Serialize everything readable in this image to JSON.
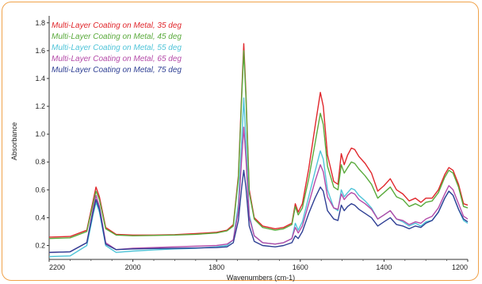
{
  "chart_data": {
    "type": "line",
    "xlabel": "Wavenumbers (cm-1)",
    "ylabel": "Absorbance",
    "xlim": [
      2200,
      1200
    ],
    "ylim": [
      0.1,
      1.85
    ],
    "x_reversed": true,
    "xticks": [
      2200,
      2000,
      1800,
      1600,
      1400,
      1200
    ],
    "yticks": [
      0.2,
      0.4,
      0.6,
      0.8,
      1.0,
      1.2,
      1.4,
      1.6,
      1.8
    ],
    "ytick_labels": [
      "0.2",
      "0.4",
      "0.6",
      "0.8",
      "1.0",
      "1.2",
      "1.4",
      "1.6",
      "1.8"
    ],
    "legend_position": "top-left",
    "series": [
      {
        "name": "Multi-Layer Coating on Metal, 35 deg",
        "color": "#e0262b",
        "points": [
          [
            2200,
            0.26
          ],
          [
            2150,
            0.265
          ],
          [
            2110,
            0.31
          ],
          [
            2095,
            0.52
          ],
          [
            2088,
            0.62
          ],
          [
            2080,
            0.55
          ],
          [
            2065,
            0.33
          ],
          [
            2040,
            0.28
          ],
          [
            2000,
            0.275
          ],
          [
            1950,
            0.275
          ],
          [
            1900,
            0.278
          ],
          [
            1850,
            0.285
          ],
          [
            1800,
            0.295
          ],
          [
            1775,
            0.31
          ],
          [
            1760,
            0.35
          ],
          [
            1748,
            0.7
          ],
          [
            1740,
            1.3
          ],
          [
            1735,
            1.65
          ],
          [
            1730,
            1.3
          ],
          [
            1722,
            0.6
          ],
          [
            1710,
            0.4
          ],
          [
            1690,
            0.34
          ],
          [
            1660,
            0.32
          ],
          [
            1640,
            0.33
          ],
          [
            1620,
            0.36
          ],
          [
            1612,
            0.5
          ],
          [
            1605,
            0.44
          ],
          [
            1595,
            0.5
          ],
          [
            1580,
            0.75
          ],
          [
            1565,
            1.05
          ],
          [
            1552,
            1.3
          ],
          [
            1545,
            1.2
          ],
          [
            1535,
            0.85
          ],
          [
            1520,
            0.66
          ],
          [
            1510,
            0.64
          ],
          [
            1502,
            0.86
          ],
          [
            1495,
            0.78
          ],
          [
            1487,
            0.85
          ],
          [
            1478,
            0.9
          ],
          [
            1470,
            0.89
          ],
          [
            1460,
            0.84
          ],
          [
            1445,
            0.79
          ],
          [
            1430,
            0.72
          ],
          [
            1415,
            0.59
          ],
          [
            1400,
            0.63
          ],
          [
            1385,
            0.68
          ],
          [
            1370,
            0.6
          ],
          [
            1355,
            0.57
          ],
          [
            1340,
            0.52
          ],
          [
            1325,
            0.54
          ],
          [
            1312,
            0.51
          ],
          [
            1300,
            0.54
          ],
          [
            1285,
            0.54
          ],
          [
            1270,
            0.6
          ],
          [
            1255,
            0.71
          ],
          [
            1245,
            0.76
          ],
          [
            1235,
            0.74
          ],
          [
            1222,
            0.64
          ],
          [
            1210,
            0.5
          ],
          [
            1200,
            0.49
          ]
        ]
      },
      {
        "name": "Multi-Layer Coating on Metal, 45 deg",
        "color": "#5aaa3c",
        "points": [
          [
            2200,
            0.25
          ],
          [
            2150,
            0.255
          ],
          [
            2110,
            0.3
          ],
          [
            2095,
            0.5
          ],
          [
            2088,
            0.59
          ],
          [
            2080,
            0.53
          ],
          [
            2065,
            0.32
          ],
          [
            2040,
            0.275
          ],
          [
            2000,
            0.27
          ],
          [
            1950,
            0.272
          ],
          [
            1900,
            0.275
          ],
          [
            1850,
            0.28
          ],
          [
            1800,
            0.29
          ],
          [
            1775,
            0.305
          ],
          [
            1760,
            0.34
          ],
          [
            1748,
            0.68
          ],
          [
            1740,
            1.27
          ],
          [
            1735,
            1.6
          ],
          [
            1730,
            1.27
          ],
          [
            1722,
            0.58
          ],
          [
            1710,
            0.39
          ],
          [
            1690,
            0.33
          ],
          [
            1660,
            0.31
          ],
          [
            1640,
            0.32
          ],
          [
            1620,
            0.35
          ],
          [
            1612,
            0.48
          ],
          [
            1605,
            0.42
          ],
          [
            1595,
            0.47
          ],
          [
            1580,
            0.68
          ],
          [
            1565,
            0.93
          ],
          [
            1552,
            1.15
          ],
          [
            1545,
            1.07
          ],
          [
            1535,
            0.77
          ],
          [
            1520,
            0.62
          ],
          [
            1510,
            0.6
          ],
          [
            1502,
            0.78
          ],
          [
            1495,
            0.72
          ],
          [
            1487,
            0.76
          ],
          [
            1478,
            0.8
          ],
          [
            1470,
            0.79
          ],
          [
            1460,
            0.75
          ],
          [
            1445,
            0.7
          ],
          [
            1430,
            0.64
          ],
          [
            1415,
            0.54
          ],
          [
            1400,
            0.58
          ],
          [
            1385,
            0.62
          ],
          [
            1370,
            0.55
          ],
          [
            1355,
            0.53
          ],
          [
            1340,
            0.48
          ],
          [
            1325,
            0.5
          ],
          [
            1312,
            0.48
          ],
          [
            1300,
            0.51
          ],
          [
            1285,
            0.52
          ],
          [
            1270,
            0.58
          ],
          [
            1255,
            0.69
          ],
          [
            1245,
            0.74
          ],
          [
            1235,
            0.72
          ],
          [
            1222,
            0.62
          ],
          [
            1210,
            0.48
          ],
          [
            1200,
            0.47
          ]
        ]
      },
      {
        "name": "Multi-Layer Coating on Metal, 55 deg",
        "color": "#50c4d8",
        "points": [
          [
            2200,
            0.12
          ],
          [
            2150,
            0.125
          ],
          [
            2110,
            0.2
          ],
          [
            2095,
            0.42
          ],
          [
            2088,
            0.51
          ],
          [
            2080,
            0.44
          ],
          [
            2065,
            0.2
          ],
          [
            2040,
            0.15
          ],
          [
            2000,
            0.16
          ],
          [
            1950,
            0.168
          ],
          [
            1900,
            0.175
          ],
          [
            1850,
            0.18
          ],
          [
            1800,
            0.19
          ],
          [
            1775,
            0.2
          ],
          [
            1760,
            0.24
          ],
          [
            1748,
            0.5
          ],
          [
            1740,
            0.95
          ],
          [
            1735,
            1.26
          ],
          [
            1730,
            0.95
          ],
          [
            1722,
            0.42
          ],
          [
            1710,
            0.27
          ],
          [
            1690,
            0.22
          ],
          [
            1660,
            0.21
          ],
          [
            1640,
            0.22
          ],
          [
            1620,
            0.25
          ],
          [
            1612,
            0.36
          ],
          [
            1605,
            0.31
          ],
          [
            1595,
            0.37
          ],
          [
            1580,
            0.55
          ],
          [
            1565,
            0.73
          ],
          [
            1552,
            0.88
          ],
          [
            1545,
            0.82
          ],
          [
            1535,
            0.6
          ],
          [
            1520,
            0.47
          ],
          [
            1510,
            0.45
          ],
          [
            1502,
            0.6
          ],
          [
            1495,
            0.55
          ],
          [
            1487,
            0.58
          ],
          [
            1478,
            0.61
          ],
          [
            1470,
            0.6
          ],
          [
            1460,
            0.56
          ],
          [
            1445,
            0.52
          ],
          [
            1430,
            0.47
          ],
          [
            1415,
            0.39
          ],
          [
            1400,
            0.42
          ],
          [
            1385,
            0.45
          ],
          [
            1370,
            0.39
          ],
          [
            1355,
            0.37
          ],
          [
            1340,
            0.34
          ],
          [
            1325,
            0.36
          ],
          [
            1312,
            0.34
          ],
          [
            1300,
            0.37
          ],
          [
            1285,
            0.38
          ],
          [
            1270,
            0.44
          ],
          [
            1255,
            0.54
          ],
          [
            1245,
            0.59
          ],
          [
            1235,
            0.56
          ],
          [
            1222,
            0.46
          ],
          [
            1210,
            0.38
          ],
          [
            1200,
            0.36
          ]
        ]
      },
      {
        "name": "Multi-Layer Coating on Metal, 65 deg",
        "color": "#b44aa8",
        "points": [
          [
            2200,
            0.15
          ],
          [
            2150,
            0.155
          ],
          [
            2110,
            0.22
          ],
          [
            2095,
            0.46
          ],
          [
            2088,
            0.56
          ],
          [
            2080,
            0.48
          ],
          [
            2065,
            0.22
          ],
          [
            2040,
            0.17
          ],
          [
            2000,
            0.18
          ],
          [
            1950,
            0.185
          ],
          [
            1900,
            0.19
          ],
          [
            1850,
            0.195
          ],
          [
            1800,
            0.2
          ],
          [
            1775,
            0.21
          ],
          [
            1760,
            0.24
          ],
          [
            1748,
            0.45
          ],
          [
            1740,
            0.83
          ],
          [
            1735,
            1.05
          ],
          [
            1730,
            0.83
          ],
          [
            1722,
            0.4
          ],
          [
            1710,
            0.27
          ],
          [
            1690,
            0.22
          ],
          [
            1660,
            0.21
          ],
          [
            1640,
            0.22
          ],
          [
            1620,
            0.25
          ],
          [
            1612,
            0.33
          ],
          [
            1605,
            0.29
          ],
          [
            1595,
            0.34
          ],
          [
            1580,
            0.5
          ],
          [
            1565,
            0.66
          ],
          [
            1552,
            0.78
          ],
          [
            1545,
            0.73
          ],
          [
            1535,
            0.55
          ],
          [
            1520,
            0.47
          ],
          [
            1510,
            0.46
          ],
          [
            1502,
            0.57
          ],
          [
            1495,
            0.53
          ],
          [
            1487,
            0.56
          ],
          [
            1478,
            0.58
          ],
          [
            1470,
            0.57
          ],
          [
            1460,
            0.53
          ],
          [
            1445,
            0.5
          ],
          [
            1430,
            0.46
          ],
          [
            1415,
            0.39
          ],
          [
            1400,
            0.42
          ],
          [
            1385,
            0.45
          ],
          [
            1370,
            0.39
          ],
          [
            1355,
            0.38
          ],
          [
            1340,
            0.35
          ],
          [
            1325,
            0.37
          ],
          [
            1312,
            0.36
          ],
          [
            1300,
            0.39
          ],
          [
            1285,
            0.41
          ],
          [
            1270,
            0.47
          ],
          [
            1255,
            0.57
          ],
          [
            1245,
            0.63
          ],
          [
            1235,
            0.6
          ],
          [
            1222,
            0.5
          ],
          [
            1210,
            0.41
          ],
          [
            1200,
            0.39
          ]
        ]
      },
      {
        "name": "Multi-Layer Coating on Metal, 75 deg",
        "color": "#2e3f94",
        "points": [
          [
            2200,
            0.15
          ],
          [
            2150,
            0.155
          ],
          [
            2110,
            0.22
          ],
          [
            2095,
            0.44
          ],
          [
            2088,
            0.53
          ],
          [
            2080,
            0.46
          ],
          [
            2065,
            0.21
          ],
          [
            2040,
            0.17
          ],
          [
            2000,
            0.175
          ],
          [
            1950,
            0.178
          ],
          [
            1900,
            0.18
          ],
          [
            1850,
            0.182
          ],
          [
            1800,
            0.185
          ],
          [
            1775,
            0.19
          ],
          [
            1760,
            0.22
          ],
          [
            1748,
            0.38
          ],
          [
            1740,
            0.62
          ],
          [
            1735,
            0.74
          ],
          [
            1730,
            0.62
          ],
          [
            1722,
            0.34
          ],
          [
            1710,
            0.23
          ],
          [
            1690,
            0.2
          ],
          [
            1660,
            0.19
          ],
          [
            1640,
            0.2
          ],
          [
            1620,
            0.22
          ],
          [
            1612,
            0.27
          ],
          [
            1605,
            0.25
          ],
          [
            1595,
            0.3
          ],
          [
            1580,
            0.43
          ],
          [
            1565,
            0.54
          ],
          [
            1552,
            0.62
          ],
          [
            1545,
            0.59
          ],
          [
            1535,
            0.45
          ],
          [
            1520,
            0.39
          ],
          [
            1510,
            0.38
          ],
          [
            1502,
            0.49
          ],
          [
            1495,
            0.45
          ],
          [
            1487,
            0.48
          ],
          [
            1478,
            0.5
          ],
          [
            1470,
            0.49
          ],
          [
            1460,
            0.46
          ],
          [
            1445,
            0.43
          ],
          [
            1430,
            0.4
          ],
          [
            1415,
            0.34
          ],
          [
            1400,
            0.37
          ],
          [
            1385,
            0.4
          ],
          [
            1370,
            0.35
          ],
          [
            1355,
            0.34
          ],
          [
            1340,
            0.32
          ],
          [
            1325,
            0.34
          ],
          [
            1312,
            0.33
          ],
          [
            1300,
            0.36
          ],
          [
            1285,
            0.38
          ],
          [
            1270,
            0.44
          ],
          [
            1255,
            0.54
          ],
          [
            1245,
            0.59
          ],
          [
            1235,
            0.56
          ],
          [
            1222,
            0.46
          ],
          [
            1210,
            0.39
          ],
          [
            1200,
            0.37
          ]
        ]
      }
    ]
  }
}
